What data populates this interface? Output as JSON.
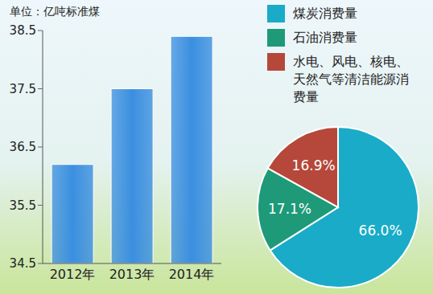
{
  "chart_data": [
    {
      "type": "bar",
      "y_label": "单位：亿吨标准煤",
      "categories": [
        "2012年",
        "2013年",
        "2014年"
      ],
      "values": [
        36.2,
        37.5,
        38.4
      ],
      "color": "#3b8fe0",
      "ylim": [
        34.5,
        38.5
      ],
      "yticks": [
        34.5,
        35.5,
        36.5,
        37.5,
        38.5
      ],
      "grid": false
    },
    {
      "type": "pie",
      "categories": [
        "煤炭消费量",
        "石油消费量",
        "水电、风电、核电、天然气等清洁能源消费量"
      ],
      "values": [
        66.0,
        17.1,
        16.9
      ],
      "value_labels": [
        "66.0%",
        "17.1%",
        "16.9%"
      ],
      "colors": [
        "#1aabc8",
        "#1e9a78",
        "#b5483a"
      ],
      "data_labels": true,
      "legend": "upper right"
    }
  ]
}
